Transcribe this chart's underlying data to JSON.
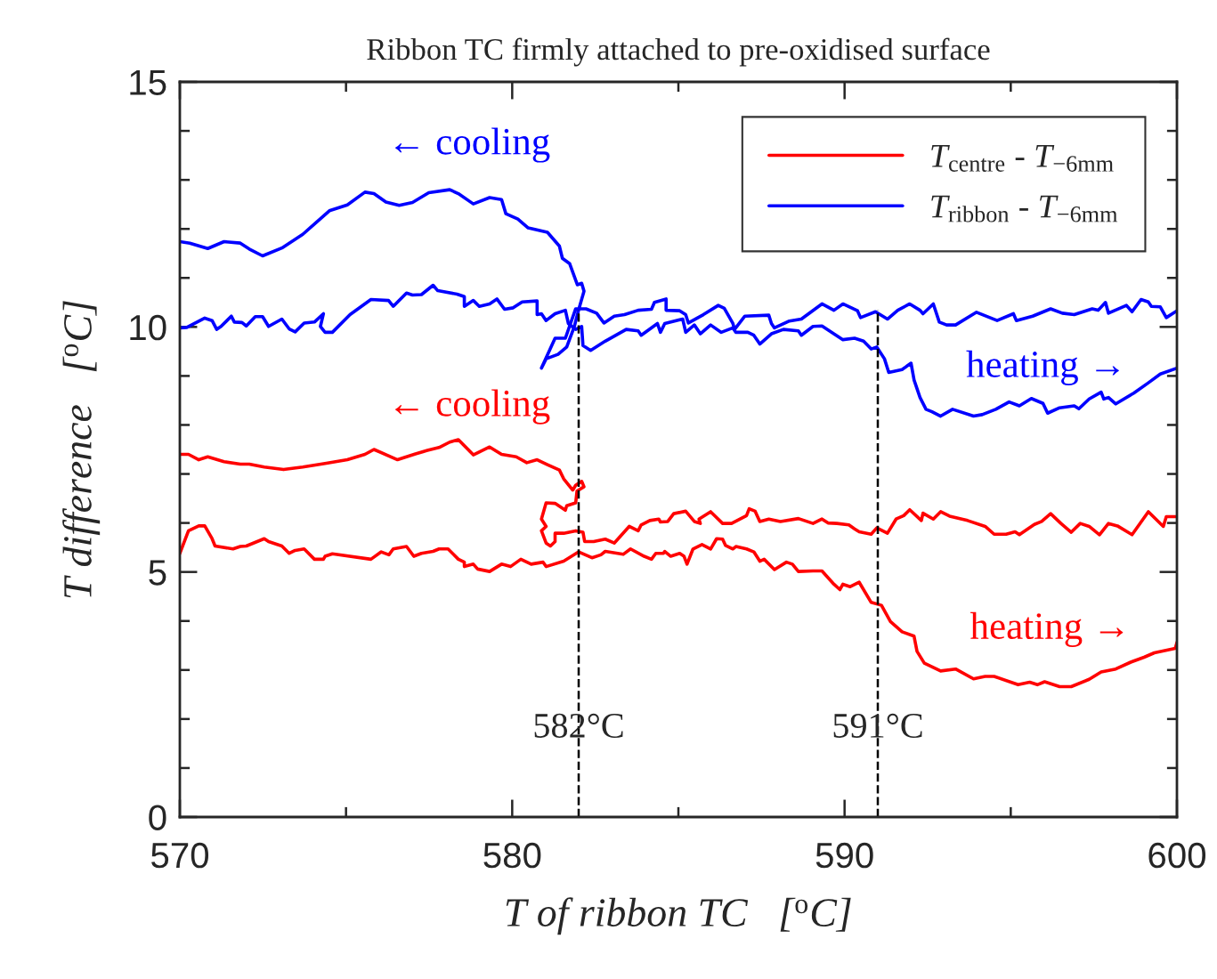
{
  "chart_data": {
    "type": "line",
    "title": "Ribbon TC firmly attached to pre-oxidised surface",
    "xlabel": "T of ribbon TC   [$^{o}$C]",
    "ylabel": "T difference   [$^{o}$C]",
    "xlim": [
      570,
      600
    ],
    "ylim": [
      0,
      15
    ],
    "xticks": [
      570,
      {
        "value": 575,
        "label": null
      },
      580,
      {
        "value": 585,
        "label": null
      },
      590,
      {
        "value": 595,
        "label": null
      },
      600
    ],
    "yticks": [
      0,
      {
        "value": 1,
        "label": null
      },
      {
        "value": 2,
        "label": null
      },
      {
        "value": 3,
        "label": null
      },
      {
        "value": 4,
        "label": null
      },
      5,
      {
        "value": 6,
        "label": null
      },
      {
        "value": 7,
        "label": null
      },
      {
        "value": 8,
        "label": null
      },
      {
        "value": 9,
        "label": null
      },
      10,
      {
        "value": 11,
        "label": null
      },
      {
        "value": 12,
        "label": null
      },
      {
        "value": 13,
        "label": null
      },
      {
        "value": 14,
        "label": null
      },
      15
    ],
    "grid": false,
    "legend": "top right",
    "line_style": "solid",
    "marker": "none",
    "series": [
      {
        "name": "T$_{centre}$ - T$_{−6mm}$",
        "color": "#ff0000",
        "x": [
          570.0,
          570.26,
          570.57,
          570.84,
          571.33,
          571.82,
          572.09,
          572.54,
          573.12,
          573.7,
          574.41,
          575.04,
          575.57,
          575.84,
          576.55,
          577.09,
          577.45,
          577.8,
          578.12,
          578.38,
          578.83,
          579.32,
          579.68,
          580.12,
          580.44,
          580.75,
          581.06,
          581.42,
          581.55,
          581.82,
          581.91,
          582.09,
          582.16,
          581.95,
          581.91,
          581.64,
          581.6,
          581.29,
          581.02,
          580.88,
          581.02,
          580.88,
          581.02,
          581.15,
          581.29,
          581.29,
          581.55,
          581.91,
          582.13,
          582.18,
          582.45,
          582.8,
          583.07,
          583.52,
          583.79,
          583.88,
          584.14,
          584.41,
          584.46,
          584.68,
          584.86,
          585.22,
          585.48,
          585.66,
          585.62,
          585.97,
          586.33,
          586.6,
          587.05,
          587.13,
          587.31,
          587.45,
          587.72,
          588.07,
          588.61,
          589.05,
          589.32,
          589.5,
          589.77,
          590.13,
          590.3,
          590.44,
          590.8,
          590.97,
          591.29,
          591.55,
          591.78,
          591.96,
          592.31,
          592.36,
          592.67,
          592.89,
          593.16,
          593.7,
          594.23,
          594.5,
          594.86,
          595.13,
          595.26,
          595.71,
          595.93,
          596.2,
          596.51,
          596.82,
          597.09,
          597.36,
          597.67,
          597.94,
          598.21,
          598.65,
          599.14,
          599.59,
          599.68,
          600.0
        ],
        "values": [
          7.4,
          7.4,
          7.29,
          7.35,
          7.25,
          7.2,
          7.2,
          7.14,
          7.09,
          7.14,
          7.22,
          7.29,
          7.4,
          7.5,
          7.29,
          7.41,
          7.48,
          7.54,
          7.65,
          7.7,
          7.39,
          7.55,
          7.4,
          7.35,
          7.23,
          7.29,
          7.19,
          7.08,
          6.9,
          6.67,
          6.77,
          6.85,
          6.74,
          6.65,
          6.41,
          6.35,
          6.26,
          6.4,
          6.41,
          6.08,
          5.93,
          5.84,
          5.59,
          5.53,
          5.62,
          5.79,
          5.79,
          5.84,
          5.81,
          5.62,
          5.62,
          5.67,
          5.59,
          5.93,
          5.84,
          5.96,
          6.05,
          6.08,
          6.02,
          6.03,
          6.19,
          6.24,
          6.03,
          5.99,
          6.08,
          6.23,
          5.99,
          5.99,
          6.15,
          6.29,
          6.24,
          6.03,
          6.08,
          6.03,
          6.09,
          5.99,
          6.08,
          6.0,
          5.99,
          5.96,
          5.88,
          5.82,
          5.77,
          5.9,
          5.79,
          6.08,
          6.15,
          6.27,
          6.05,
          6.2,
          6.08,
          6.23,
          6.14,
          6.05,
          5.93,
          5.77,
          5.77,
          5.82,
          5.76,
          5.97,
          6.03,
          6.19,
          5.99,
          5.81,
          5.99,
          5.93,
          5.76,
          5.99,
          5.94,
          5.76,
          6.23,
          5.93,
          6.13,
          6.13
        ]
      },
      {
        "color": "#ff0000",
        "x": [
          570.0,
          570.26,
          570.57,
          570.75,
          570.97,
          571.06,
          571.6,
          571.82,
          572.0,
          572.54,
          572.67,
          573.07,
          573.29,
          573.47,
          573.74,
          574.05,
          574.32,
          574.37,
          574.59,
          575.75,
          576.06,
          576.29,
          576.42,
          576.82,
          577.04,
          577.27,
          577.62,
          577.8,
          578.07,
          578.38,
          578.56,
          578.56,
          578.83,
          578.96,
          579.32,
          579.68,
          579.95,
          580.26,
          580.57,
          580.93,
          581.02,
          581.55,
          582.0,
          582.4,
          582.67,
          582.8,
          583.34,
          583.56,
          583.97,
          584.19,
          584.32,
          584.55,
          584.59,
          584.77,
          585.04,
          585.17,
          585.26,
          585.44,
          585.71,
          585.97,
          586.15,
          586.33,
          586.42,
          586.64,
          586.73,
          587.05,
          587.27,
          587.45,
          587.58,
          587.89,
          588.25,
          588.43,
          588.61,
          589.05,
          589.32,
          589.68,
          589.86,
          589.95,
          590.17,
          590.44,
          590.8,
          591.11,
          591.38,
          591.73,
          592.09,
          592.18,
          592.4,
          592.89,
          593.34,
          593.88,
          594.23,
          594.5,
          595.22,
          595.57,
          595.8,
          596.02,
          596.47,
          596.82,
          597.36,
          597.72,
          598.16,
          598.61,
          599.01,
          599.32,
          599.95,
          600.0
        ],
        "values": [
          5.38,
          5.84,
          5.94,
          5.94,
          5.68,
          5.53,
          5.47,
          5.52,
          5.53,
          5.68,
          5.62,
          5.53,
          5.38,
          5.44,
          5.47,
          5.26,
          5.26,
          5.32,
          5.37,
          5.26,
          5.41,
          5.35,
          5.47,
          5.52,
          5.32,
          5.38,
          5.42,
          5.47,
          5.47,
          5.26,
          5.2,
          5.11,
          5.16,
          5.06,
          5.01,
          5.16,
          5.11,
          5.26,
          5.16,
          5.2,
          5.11,
          5.22,
          5.41,
          5.29,
          5.35,
          5.42,
          5.36,
          5.47,
          5.32,
          5.26,
          5.38,
          5.38,
          5.42,
          5.32,
          5.38,
          5.32,
          5.16,
          5.47,
          5.56,
          5.47,
          5.68,
          5.67,
          5.54,
          5.47,
          5.52,
          5.47,
          5.41,
          5.22,
          5.26,
          5.05,
          5.2,
          5.16,
          5.01,
          5.02,
          5.02,
          4.75,
          4.64,
          4.75,
          4.7,
          4.79,
          4.38,
          4.32,
          3.99,
          3.78,
          3.69,
          3.38,
          3.14,
          2.98,
          3.02,
          2.82,
          2.87,
          2.87,
          2.7,
          2.75,
          2.7,
          2.76,
          2.66,
          2.66,
          2.81,
          2.96,
          3.02,
          3.16,
          3.26,
          3.35,
          3.44,
          3.56
        ]
      },
      {
        "name": "T$_{ribbon}$ - T$_{−6mm}$",
        "color": "#0000ff",
        "x": [
          570.0,
          570.3,
          570.84,
          571.33,
          571.82,
          572.09,
          572.49,
          573.07,
          573.7,
          574.5,
          575.04,
          575.57,
          575.84,
          576.2,
          576.6,
          577.0,
          577.49,
          578.12,
          578.38,
          578.83,
          579.32,
          579.68,
          579.81,
          580.17,
          580.48,
          581.06,
          581.42,
          581.51,
          581.73,
          581.96,
          582.09,
          582.16,
          582.0,
          581.87,
          581.64,
          581.38,
          581.02,
          580.88,
          581.29,
          581.6,
          581.91,
          582.22,
          582.54,
          582.76,
          583.07,
          583.38,
          583.79,
          584.19,
          584.28,
          584.63,
          584.63,
          585.04,
          585.22,
          585.3,
          585.75,
          586.2,
          586.38,
          586.64,
          586.69,
          587.0,
          587.72,
          587.8,
          587.89,
          588.34,
          588.7,
          589.32,
          589.68,
          589.95,
          590.39,
          590.48,
          590.93,
          591.29,
          591.6,
          591.96,
          592.27,
          592.36,
          592.67,
          592.85,
          593.07,
          593.34,
          593.97,
          594.59,
          595.08,
          595.17,
          595.66,
          596.2,
          596.55,
          596.91,
          597.45,
          597.63,
          597.85,
          597.94,
          598.48,
          598.65,
          598.92,
          599.14,
          599.23,
          599.5,
          599.68,
          600.0
        ],
        "values": [
          11.74,
          11.71,
          11.6,
          11.74,
          11.71,
          11.59,
          11.45,
          11.61,
          11.89,
          12.37,
          12.49,
          12.75,
          12.72,
          12.55,
          12.48,
          12.54,
          12.74,
          12.8,
          12.72,
          12.51,
          12.64,
          12.6,
          12.31,
          12.2,
          12.02,
          11.93,
          11.65,
          11.4,
          11.29,
          10.86,
          10.89,
          10.73,
          10.35,
          10.01,
          9.59,
          9.44,
          9.35,
          9.16,
          9.77,
          9.77,
          10.37,
          10.37,
          10.28,
          10.08,
          10.22,
          10.25,
          10.34,
          10.36,
          10.5,
          10.57,
          10.34,
          10.33,
          10.25,
          10.08,
          10.25,
          10.44,
          10.38,
          10.07,
          9.95,
          10.22,
          10.24,
          10.07,
          9.98,
          10.12,
          10.16,
          10.47,
          10.34,
          10.47,
          10.33,
          10.19,
          10.31,
          10.16,
          10.34,
          10.47,
          10.34,
          10.27,
          10.47,
          10.1,
          10.04,
          10.04,
          10.3,
          10.13,
          10.27,
          10.13,
          10.22,
          10.37,
          10.28,
          10.25,
          10.37,
          10.34,
          10.5,
          10.28,
          10.44,
          10.31,
          10.56,
          10.51,
          10.42,
          10.41,
          10.19,
          10.33
        ]
      },
      {
        "color": "#0000ff",
        "x": [
          570.0,
          570.21,
          570.75,
          570.97,
          571.11,
          571.24,
          571.55,
          571.64,
          571.87,
          572.0,
          572.27,
          572.49,
          572.67,
          573.07,
          573.29,
          573.47,
          573.74,
          574.05,
          574.32,
          574.23,
          574.37,
          574.59,
          575.12,
          575.75,
          576.28,
          576.42,
          576.82,
          577.0,
          577.27,
          577.62,
          577.76,
          578.34,
          578.56,
          578.56,
          578.83,
          579.01,
          579.32,
          579.54,
          579.77,
          580.03,
          580.3,
          580.75,
          580.75,
          580.88,
          581.02,
          581.29,
          581.6,
          581.69,
          581.91,
          582.09,
          582.13,
          582.36,
          582.8,
          583.43,
          583.79,
          583.88,
          584.37,
          584.46,
          584.59,
          585.13,
          585.22,
          585.48,
          585.66,
          585.97,
          586.29,
          586.64,
          586.73,
          587.09,
          587.27,
          587.45,
          587.8,
          588.16,
          588.61,
          588.7,
          589.05,
          589.32,
          589.95,
          590.3,
          590.57,
          590.8,
          590.97,
          591.2,
          591.33,
          591.73,
          592.0,
          592.09,
          592.27,
          592.45,
          592.63,
          592.89,
          593.25,
          593.88,
          594.14,
          594.55,
          594.95,
          595.26,
          595.62,
          595.97,
          596.11,
          596.47,
          596.91,
          597.05,
          597.36,
          597.72,
          597.8,
          597.94,
          598.16,
          598.7,
          599.14,
          599.5,
          600.0
        ],
        "values": [
          9.98,
          9.99,
          10.18,
          10.13,
          9.95,
          10.01,
          10.22,
          10.1,
          10.09,
          10.02,
          10.21,
          10.21,
          10.01,
          10.16,
          9.96,
          9.9,
          10.08,
          10.1,
          10.27,
          10.01,
          9.89,
          9.89,
          10.25,
          10.56,
          10.54,
          10.42,
          10.69,
          10.65,
          10.66,
          10.85,
          10.74,
          10.67,
          10.62,
          10.42,
          10.54,
          10.42,
          10.47,
          10.57,
          10.36,
          10.39,
          10.51,
          10.53,
          10.25,
          10.27,
          10.13,
          10.27,
          10.34,
          10.07,
          9.95,
          10.01,
          9.62,
          9.52,
          9.71,
          9.95,
          9.92,
          9.83,
          10.07,
          9.89,
          10.07,
          10.16,
          9.89,
          10.04,
          9.86,
          10.04,
          9.89,
          9.98,
          9.89,
          9.89,
          9.83,
          9.65,
          9.86,
          9.95,
          9.92,
          9.83,
          10.01,
          10.02,
          9.74,
          9.77,
          9.71,
          9.55,
          9.59,
          9.35,
          9.07,
          9.13,
          9.26,
          8.92,
          8.56,
          8.32,
          8.27,
          8.18,
          8.32,
          8.18,
          8.21,
          8.32,
          8.47,
          8.39,
          8.54,
          8.44,
          8.24,
          8.35,
          8.39,
          8.33,
          8.53,
          8.67,
          8.53,
          8.56,
          8.43,
          8.65,
          8.86,
          9.04,
          9.16
        ]
      }
    ],
    "ref_lines": [
      {
        "axis": "x",
        "value": 582,
        "label": "582°C",
        "color": "#000000",
        "line_style": "dashed"
      },
      {
        "axis": "x",
        "value": 591,
        "label": "591°C",
        "color": "#000000",
        "line_style": "dashed"
      }
    ],
    "annotations": [
      "← cooling",
      "← cooling",
      "heating →",
      "heating →"
    ]
  }
}
